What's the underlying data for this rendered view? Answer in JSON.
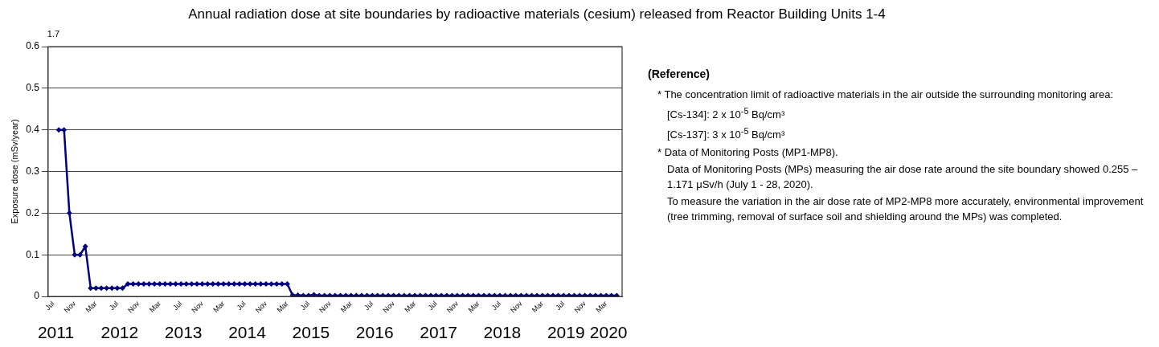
{
  "chart_data": {
    "type": "line",
    "title": "Annual radiation dose at site boundaries by radioactive materials (cesium) released from Reactor Building Units 1-4",
    "ylabel": "Exposure dose (mSv/year)",
    "x": [
      "2011-08",
      "2011-09",
      "2011-10",
      "2011-11",
      "2011-12",
      "2012-01",
      "2012-02",
      "2012-03",
      "2012-04",
      "2012-05",
      "2012-06",
      "2012-07",
      "2012-08",
      "2012-09",
      "2012-10",
      "2012-11",
      "2012-12",
      "2013-01",
      "2013-02",
      "2013-03",
      "2013-04",
      "2013-05",
      "2013-06",
      "2013-07",
      "2013-08",
      "2013-09",
      "2013-10",
      "2013-11",
      "2013-12",
      "2014-01",
      "2014-02",
      "2014-03",
      "2014-04",
      "2014-05",
      "2014-06",
      "2014-07",
      "2014-08",
      "2014-09",
      "2014-10",
      "2014-11",
      "2014-12",
      "2015-01",
      "2015-02",
      "2015-03",
      "2015-04",
      "2015-05",
      "2015-06",
      "2015-07",
      "2015-08",
      "2015-09",
      "2015-10",
      "2015-11",
      "2015-12",
      "2016-01",
      "2016-02",
      "2016-03",
      "2016-04",
      "2016-05",
      "2016-06",
      "2016-07",
      "2016-08",
      "2016-09",
      "2016-10",
      "2016-11",
      "2016-12",
      "2017-01",
      "2017-02",
      "2017-03",
      "2017-04",
      "2017-05",
      "2017-06",
      "2017-07",
      "2017-08",
      "2017-09",
      "2017-10",
      "2017-11",
      "2017-12",
      "2018-01",
      "2018-02",
      "2018-03",
      "2018-04",
      "2018-05",
      "2018-06",
      "2018-07",
      "2018-08",
      "2018-09",
      "2018-10",
      "2018-11",
      "2018-12",
      "2019-01",
      "2019-02",
      "2019-03",
      "2019-04",
      "2019-05",
      "2019-06",
      "2019-07",
      "2019-08",
      "2019-09",
      "2019-10",
      "2019-11",
      "2019-12",
      "2020-01",
      "2020-02",
      "2020-03",
      "2020-04",
      "2020-05"
    ],
    "series": [
      {
        "color": "#000080",
        "values": [
          0.4,
          0.4,
          0.2,
          0.1,
          0.1,
          0.12,
          0.02,
          0.02,
          0.02,
          0.02,
          0.02,
          0.02,
          0.02,
          0.03,
          0.03,
          0.03,
          0.03,
          0.03,
          0.03,
          0.03,
          0.03,
          0.03,
          0.03,
          0.03,
          0.03,
          0.03,
          0.03,
          0.03,
          0.03,
          0.03,
          0.03,
          0.03,
          0.03,
          0.03,
          0.03,
          0.03,
          0.03,
          0.03,
          0.03,
          0.03,
          0.03,
          0.03,
          0.03,
          0.03,
          0.003,
          0.003,
          0.002,
          0.002,
          0.004,
          0.002,
          0.002,
          0.002,
          0.002,
          0.002,
          0.002,
          0.002,
          0.002,
          0.002,
          0.002,
          0.002,
          0.002,
          0.002,
          0.002,
          0.002,
          0.002,
          0.002,
          0.002,
          0.002,
          0.002,
          0.002,
          0.002,
          0.002,
          0.002,
          0.002,
          0.002,
          0.002,
          0.002,
          0.002,
          0.002,
          0.002,
          0.002,
          0.002,
          0.002,
          0.002,
          0.002,
          0.002,
          0.002,
          0.002,
          0.002,
          0.002,
          0.002,
          0.002,
          0.002,
          0.002,
          0.002,
          0.002,
          0.002,
          0.002,
          0.002,
          0.002,
          0.002,
          0.002,
          0.002,
          0.002,
          0.002,
          0.002
        ]
      }
    ],
    "xlim": [
      "2011-06",
      "2020-06"
    ],
    "xticks": [
      {
        "value": "2011-07",
        "label": "Jul"
      },
      {
        "value": "2011-11",
        "label": "Nov"
      },
      {
        "value": "2012-03",
        "label": "Mar"
      },
      {
        "value": "2012-07",
        "label": "Jul"
      },
      {
        "value": "2012-11",
        "label": "Nov"
      },
      {
        "value": "2013-03",
        "label": "Mar"
      },
      {
        "value": "2013-07",
        "label": "Jul"
      },
      {
        "value": "2013-11",
        "label": "Nov"
      },
      {
        "value": "2014-03",
        "label": "Mar"
      },
      {
        "value": "2014-07",
        "label": "Jul"
      },
      {
        "value": "2014-11",
        "label": "Nov"
      },
      {
        "value": "2015-03",
        "label": "Mar"
      },
      {
        "value": "2015-07",
        "label": "Jul"
      },
      {
        "value": "2015-11",
        "label": "Nov"
      },
      {
        "value": "2016-03",
        "label": "Mar"
      },
      {
        "value": "2016-07",
        "label": "Jul"
      },
      {
        "value": "2016-11",
        "label": "Nov"
      },
      {
        "value": "2017-03",
        "label": "Mar"
      },
      {
        "value": "2017-07",
        "label": "Jul"
      },
      {
        "value": "2017-11",
        "label": "Nov"
      },
      {
        "value": "2018-03",
        "label": "Mar"
      },
      {
        "value": "2018-07",
        "label": "Jul"
      },
      {
        "value": "2018-11",
        "label": "Nov"
      },
      {
        "value": "2019-03",
        "label": "Mar"
      },
      {
        "value": "2019-07",
        "label": "Jul"
      },
      {
        "value": "2019-11",
        "label": "Nov"
      },
      {
        "value": "2020-03",
        "label": "Mar"
      }
    ],
    "ylim": [
      0,
      0.6
    ],
    "yticks": [
      0,
      0.1,
      0.2,
      0.3,
      0.4,
      0.5,
      0.6
    ],
    "grid": "y",
    "marker": "diamond",
    "line_style": "solid",
    "legend": false,
    "annotations": [
      "1.7",
      "2011",
      "2012",
      "2013",
      "2014",
      "2015",
      "2016",
      "2017",
      "2018",
      "2019",
      "2020",
      "(Reference)",
      "* The concentration limit of radioactive materials in the air outside the surrounding monitoring area:",
      "[Cs-134]: 2 x 10$^{-5}$ Bq/cm³",
      "[Cs-137]: 3 x 10$^{-5}$ Bq/cm³",
      "* Data of Monitoring Posts (MP1-MP8).",
      "Data of Monitoring Posts (MPs) measuring the air dose rate around the site boundary showed 0.255 – 1.171 μSv/h (July 1 - 28, 2020).",
      "To measure the variation in the air dose rate of MP2-MP8 more accurately, environmental improvement (tree trimming, removal of surface soil and shielding around the MPs) was completed."
    ]
  }
}
